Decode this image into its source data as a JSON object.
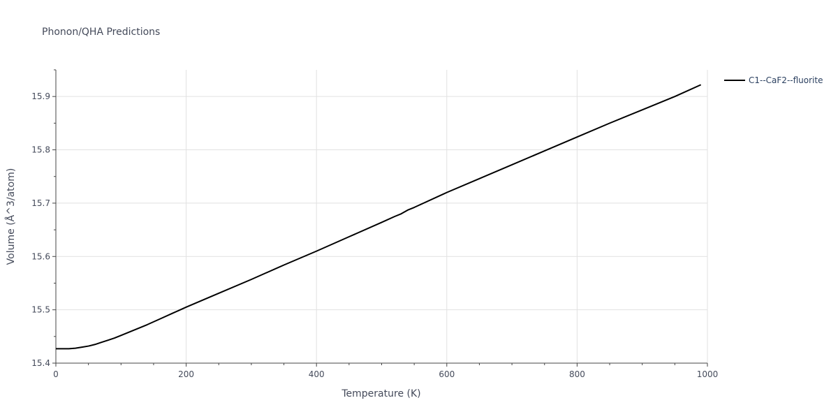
{
  "chart_data": {
    "type": "line",
    "title": "Phonon/QHA Predictions",
    "xlabel": "Temperature (K)",
    "ylabel": "Volume (Å^3/atom)",
    "xlim": [
      0,
      1000
    ],
    "ylim": [
      15.4,
      15.95
    ],
    "x_ticks": [
      0,
      200,
      400,
      600,
      800,
      1000
    ],
    "y_ticks": [
      15.4,
      15.5,
      15.6,
      15.7,
      15.8,
      15.9
    ],
    "grid": true,
    "legend_position": "top-right",
    "series": [
      {
        "name": "C1--CaF2--fluorite",
        "color": "#000000",
        "x": [
          0,
          10,
          20,
          30,
          40,
          50,
          60,
          70,
          80,
          90,
          100,
          120,
          140,
          160,
          180,
          200,
          250,
          300,
          350,
          400,
          450,
          500,
          520,
          530,
          540,
          550,
          600,
          650,
          700,
          750,
          800,
          850,
          900,
          950,
          990
        ],
        "y": [
          15.427,
          15.427,
          15.427,
          15.428,
          15.43,
          15.432,
          15.435,
          15.439,
          15.443,
          15.447,
          15.452,
          15.462,
          15.472,
          15.483,
          15.494,
          15.505,
          15.531,
          15.557,
          15.584,
          15.61,
          15.637,
          15.664,
          15.675,
          15.68,
          15.687,
          15.692,
          15.72,
          15.746,
          15.772,
          15.798,
          15.824,
          15.85,
          15.875,
          15.9,
          15.922
        ]
      }
    ]
  }
}
